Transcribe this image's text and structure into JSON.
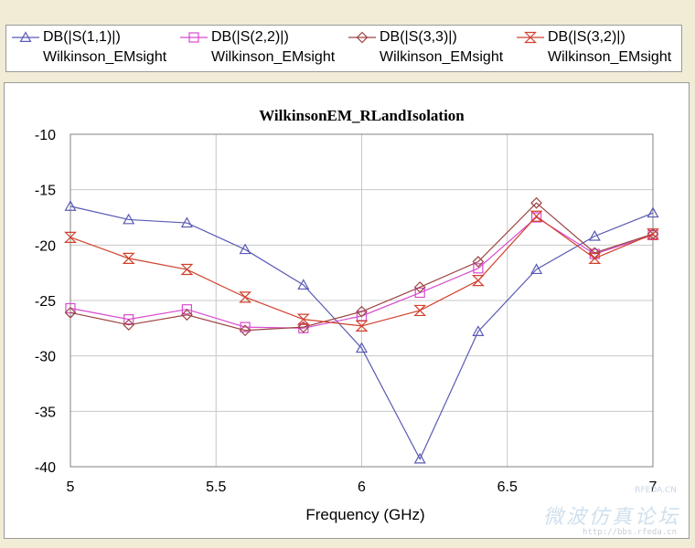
{
  "legend": [
    {
      "name": "DB(|S(1,1)|)",
      "source": "Wilkinson_EMsight",
      "color": "#5a5ab4",
      "marker": "triangle-up"
    },
    {
      "name": "DB(|S(2,2)|)",
      "source": "Wilkinson_EMsight",
      "color": "#d84ad0",
      "marker": "square"
    },
    {
      "name": "DB(|S(3,3)|)",
      "source": "Wilkinson_EMsight",
      "color": "#9c4444",
      "marker": "diamond"
    },
    {
      "name": "DB(|S(3,2)|)",
      "source": "Wilkinson_EMsight",
      "color": "#d0402c",
      "marker": "hourglass"
    }
  ],
  "watermark": {
    "brand": "RFEDA.CN",
    "forum": "微波仿真论坛",
    "url": "http://bbs.rfeda.cn"
  },
  "chart_data": {
    "type": "line",
    "title": "WilkinsonEM_RLandIsolation",
    "xlabel": "Frequency (GHz)",
    "ylabel": "",
    "xlim": [
      5,
      7
    ],
    "ylim": [
      -40,
      -10
    ],
    "xticks": [
      "5",
      "5.5",
      "6",
      "6.5",
      "7"
    ],
    "yticks": [
      "-10",
      "-15",
      "-20",
      "-25",
      "-30",
      "-35",
      "-40"
    ],
    "grid": true,
    "legend_position": "top",
    "x": [
      5.0,
      5.2,
      5.4,
      5.6,
      5.8,
      6.0,
      6.2,
      6.4,
      6.6,
      6.8,
      7.0
    ],
    "series": [
      {
        "name": "DB(|S(1,1)|)",
        "values": [
          -16.5,
          -17.7,
          -18.0,
          -20.4,
          -23.6,
          -29.3,
          -39.3,
          -27.8,
          -22.2,
          -19.2,
          -17.1
        ]
      },
      {
        "name": "DB(|S(2,2)|)",
        "values": [
          -25.7,
          -26.7,
          -25.8,
          -27.4,
          -27.5,
          -26.4,
          -24.3,
          -22.1,
          -17.5,
          -20.8,
          -19.1
        ]
      },
      {
        "name": "DB(|S(3,3)|)",
        "values": [
          -26.1,
          -27.2,
          -26.3,
          -27.7,
          -27.4,
          -26.0,
          -23.8,
          -21.5,
          -16.2,
          -20.7,
          -19.0
        ]
      },
      {
        "name": "DB(|S(3,2)|)",
        "values": [
          -19.3,
          -21.2,
          -22.2,
          -24.7,
          -26.7,
          -27.3,
          -25.9,
          -23.2,
          -17.4,
          -21.2,
          -19.0
        ]
      }
    ]
  }
}
